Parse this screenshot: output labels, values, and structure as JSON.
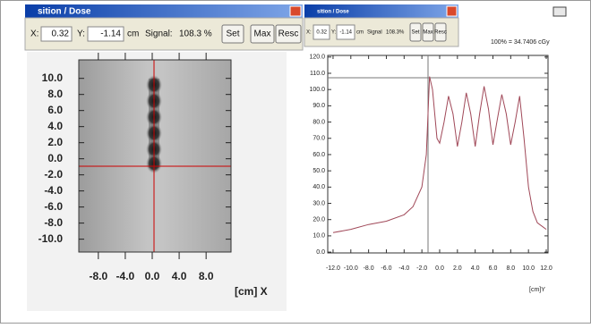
{
  "toolbars": [
    {
      "title": "sition / Dose",
      "x_label": "X:",
      "x_value": "0.32",
      "y_label": "Y:",
      "y_value": "-1.14",
      "unit": "cm",
      "signal_label": "Signal:",
      "signal_value": "108.3 %",
      "buttons": [
        "Set",
        "Max",
        "Resc"
      ]
    },
    {
      "title": "sition / Dose",
      "x_label": "X:",
      "x_value": "0.32",
      "y_label": "Y:",
      "y_value": "-1.14",
      "unit": "cm",
      "signal_label": "Signal",
      "signal_value": "108.3%",
      "buttons": [
        "Set",
        "Max",
        "Resc"
      ]
    }
  ],
  "chart_data": [
    {
      "type": "heatmap",
      "xlabel": "[cm] X",
      "xlim": [
        -10.9,
        11.7
      ],
      "ylim": [
        -11.6,
        12.3
      ],
      "xticks": [
        {
          "value": -8,
          "label": "-8.0"
        },
        {
          "value": -4,
          "label": "-4.0"
        },
        {
          "value": 0,
          "label": "0.0"
        },
        {
          "value": 4,
          "label": "4.0"
        },
        {
          "value": 8,
          "label": "8.0"
        }
      ],
      "yticks": [
        {
          "value": 10,
          "label": "10.0"
        },
        {
          "value": 8,
          "label": "8.0"
        },
        {
          "value": 6,
          "label": "6.0"
        },
        {
          "value": 4,
          "label": "4.0"
        },
        {
          "value": 2,
          "label": "2.0"
        },
        {
          "value": 0,
          "label": "0.0"
        },
        {
          "value": -2,
          "label": "-2.0"
        },
        {
          "value": -4,
          "label": "-4.0"
        },
        {
          "value": -6,
          "label": "-6.0"
        },
        {
          "value": -8,
          "label": "-8.0"
        },
        {
          "value": -10,
          "label": "-10.0"
        }
      ]
    },
    {
      "type": "line",
      "xlabel": "[cm]Y",
      "annotation": "100% = 34.7406 cGy",
      "color": "#a04858",
      "xlim": [
        -12.6,
        12.2
      ],
      "ylim": [
        -0.5,
        121
      ],
      "xticks": [
        {
          "value": -12,
          "label": "-12.0"
        },
        {
          "value": -10,
          "label": "-10.0"
        },
        {
          "value": -8,
          "label": "-8.0"
        },
        {
          "value": -6,
          "label": "-6.0"
        },
        {
          "value": -4,
          "label": "-4.0"
        },
        {
          "value": -2,
          "label": "-2.0"
        },
        {
          "value": 0,
          "label": "0.0"
        },
        {
          "value": 2,
          "label": "2.0"
        },
        {
          "value": 4,
          "label": "4.0"
        },
        {
          "value": 6,
          "label": "6.0"
        },
        {
          "value": 8,
          "label": "8.0"
        },
        {
          "value": 10,
          "label": "10.0"
        },
        {
          "value": 12,
          "label": "12.0"
        }
      ],
      "yticks": [
        {
          "value": 120,
          "label": "120.0"
        },
        {
          "value": 110,
          "label": "110.0"
        },
        {
          "value": 100,
          "label": "100.0"
        },
        {
          "value": 90,
          "label": "90.0"
        },
        {
          "value": 80,
          "label": "80.0"
        },
        {
          "value": 70,
          "label": "70.0"
        },
        {
          "value": 60,
          "label": "60.0"
        },
        {
          "value": 50,
          "label": "50.0"
        },
        {
          "value": 40,
          "label": "40.0"
        },
        {
          "value": 30,
          "label": "30.0"
        },
        {
          "value": 20,
          "label": "20.0"
        },
        {
          "value": 10,
          "label": "10.0"
        },
        {
          "value": 0,
          "label": "0.0"
        }
      ],
      "x": [
        -12,
        -10,
        -8,
        -6,
        -4,
        -3,
        -2,
        -1.5,
        -1.14,
        -0.8,
        -0.3,
        0,
        0.5,
        1,
        1.5,
        2,
        2.5,
        3,
        3.5,
        4,
        4.5,
        5,
        5.5,
        6,
        6.5,
        7,
        7.5,
        8,
        8.5,
        9,
        9.5,
        10,
        10.5,
        11,
        12
      ],
      "values": [
        12,
        14,
        17,
        19,
        23,
        28,
        40,
        60,
        108,
        100,
        70,
        67,
        80,
        96,
        85,
        65,
        80,
        98,
        85,
        65,
        85,
        102,
        88,
        66,
        82,
        97,
        85,
        66,
        80,
        96,
        70,
        40,
        25,
        18,
        14
      ]
    }
  ]
}
